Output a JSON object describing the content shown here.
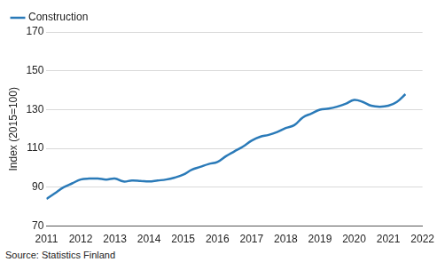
{
  "chart_data": {
    "type": "line",
    "y_label": "Index (2015=100)",
    "source": "Source: Statistics Finland",
    "x": [
      2011,
      2011.25,
      2011.5,
      2011.75,
      2012,
      2012.25,
      2012.5,
      2012.75,
      2013,
      2013.25,
      2013.5,
      2013.75,
      2014,
      2014.25,
      2014.5,
      2014.75,
      2015,
      2015.25,
      2015.5,
      2015.75,
      2016,
      2016.25,
      2016.5,
      2016.75,
      2017,
      2017.25,
      2017.5,
      2017.75,
      2018,
      2018.25,
      2018.5,
      2018.75,
      2019,
      2019.25,
      2019.5,
      2019.75,
      2020,
      2020.25,
      2020.5,
      2020.75,
      2021,
      2021.25,
      2021.5
    ],
    "series": [
      {
        "name": "Construction",
        "color": "#2a7ab8",
        "values": [
          84,
          87,
          90,
          92,
          94,
          94.5,
          94.5,
          94,
          94.5,
          93,
          93.5,
          93.3,
          93,
          93.5,
          94,
          95,
          96.5,
          99,
          100.5,
          102,
          103,
          106,
          108.5,
          111,
          114,
          116,
          117,
          118.5,
          120.5,
          122,
          126,
          128,
          130,
          130.5,
          131.5,
          133,
          135,
          134,
          132,
          131.5,
          132,
          134,
          138
        ]
      }
    ],
    "xlim": [
      2011,
      2022
    ],
    "xticks": [
      2011,
      2012,
      2013,
      2014,
      2015,
      2016,
      2017,
      2018,
      2019,
      2020,
      2021,
      2022
    ],
    "ylim": [
      70,
      170
    ],
    "yticks": [
      70,
      90,
      110,
      130,
      150,
      170
    ],
    "grid": true,
    "legend": "top-left"
  }
}
